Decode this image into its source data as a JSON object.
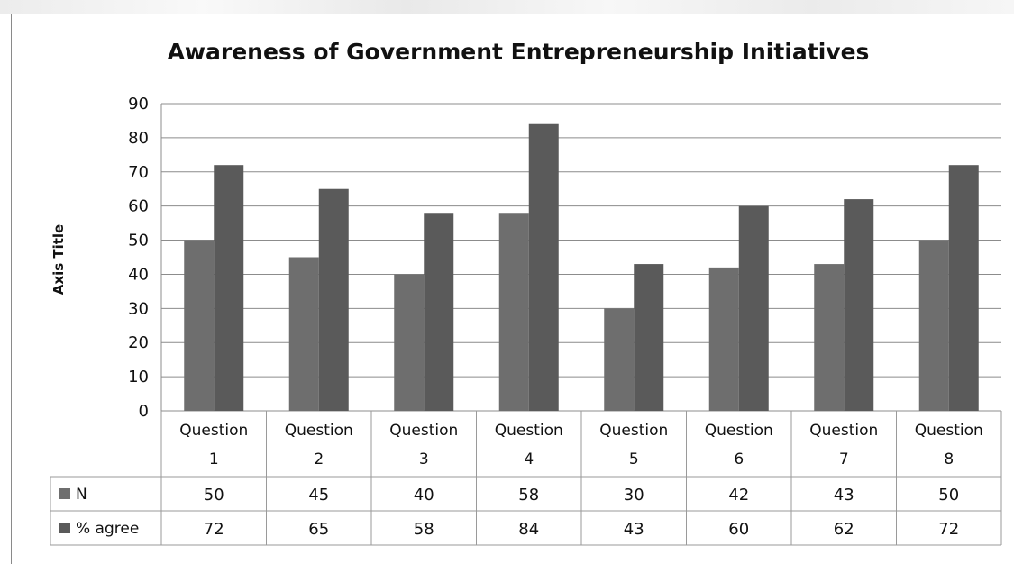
{
  "chart_data": {
    "type": "bar",
    "title": "Awareness of Government Entrepreneurship Initiatives",
    "ylabel": "Axis Title",
    "xlabel": "",
    "ylim": [
      0,
      90
    ],
    "yticks": [
      "0",
      "10",
      "20",
      "30",
      "40",
      "50",
      "60",
      "70",
      "80",
      "90"
    ],
    "grid": true,
    "legend_placement": "data table rows below chart",
    "categories": [
      [
        "Question",
        "1"
      ],
      [
        "Question",
        "2"
      ],
      [
        "Question",
        "3"
      ],
      [
        "Question",
        "4"
      ],
      [
        "Question",
        "5"
      ],
      [
        "Question",
        "6"
      ],
      [
        "Question",
        "7"
      ],
      [
        "Question",
        "8"
      ]
    ],
    "series": [
      {
        "name": "N",
        "color": "#6e6e6e",
        "values": [
          50,
          45,
          40,
          58,
          30,
          42,
          43,
          50
        ]
      },
      {
        "name": "% agree",
        "color": "#5a5a5a",
        "values": [
          72,
          65,
          58,
          84,
          43,
          60,
          62,
          72
        ]
      }
    ],
    "data_table": {
      "rows": [
        {
          "label": "N",
          "cells": [
            "50",
            "45",
            "40",
            "58",
            "30",
            "42",
            "43",
            "50"
          ]
        },
        {
          "label": "% agree",
          "cells": [
            "72",
            "65",
            "58",
            "84",
            "43",
            "60",
            "62",
            "72"
          ]
        }
      ]
    }
  }
}
